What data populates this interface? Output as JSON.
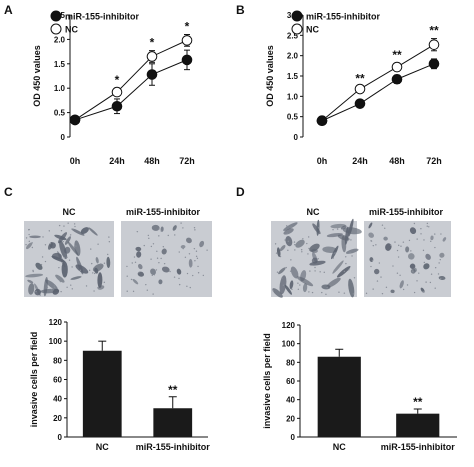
{
  "panel_labels": [
    "A",
    "B",
    "C",
    "D"
  ],
  "image_labels": {
    "C": {
      "left": "NC",
      "right": "miR-155-inhibitor"
    },
    "D": {
      "left": "NC",
      "right": "miR-155-inhibitor"
    }
  },
  "chart_data": [
    {
      "panel": "A",
      "type": "line",
      "ylabel": "OD 450 values",
      "xlabel": "",
      "categories": [
        "0h",
        "24h",
        "48h",
        "72h"
      ],
      "ylim": [
        0,
        2.5
      ],
      "yticks": [
        "0",
        "0.5",
        "1.0",
        "1.5",
        "2.0",
        "2.5"
      ],
      "legend": "top-left",
      "series": [
        {
          "name": "miR-155-inhibitor",
          "marker": "filled",
          "values": [
            0.35,
            0.63,
            1.28,
            1.58
          ],
          "errors": [
            0.03,
            0.15,
            0.22,
            0.2
          ]
        },
        {
          "name": "NC",
          "marker": "open",
          "values": [
            0.35,
            0.92,
            1.65,
            1.98
          ],
          "errors": [
            0.03,
            0.08,
            0.12,
            0.12
          ]
        }
      ],
      "annotations": [
        "",
        "*",
        "*",
        "*"
      ]
    },
    {
      "panel": "B",
      "type": "line",
      "ylabel": "OD 450 values",
      "xlabel": "",
      "categories": [
        "0h",
        "24h",
        "48h",
        "72h"
      ],
      "ylim": [
        0,
        3.0
      ],
      "yticks": [
        "0",
        "0.5",
        "1.0",
        "1.5",
        "2.0",
        "2.5",
        "3.0"
      ],
      "legend": "top-left",
      "series": [
        {
          "name": "miR-155-inhibitor",
          "marker": "filled",
          "values": [
            0.4,
            0.82,
            1.42,
            1.8
          ],
          "errors": [
            0.03,
            0.08,
            0.1,
            0.12
          ]
        },
        {
          "name": "NC",
          "marker": "open",
          "values": [
            0.4,
            1.18,
            1.72,
            2.27
          ],
          "errors": [
            0.03,
            0.06,
            0.1,
            0.15
          ]
        }
      ],
      "annotations": [
        "",
        "**",
        "**",
        "**"
      ]
    },
    {
      "panel": "C",
      "type": "bar",
      "ylabel": "invasive cells per field",
      "categories": [
        "NC",
        "miR-155-inhibitor"
      ],
      "values": [
        90,
        30
      ],
      "errors": [
        10,
        12
      ],
      "ylim": [
        0,
        120
      ],
      "yticks": [
        "0",
        "20",
        "40",
        "60",
        "80",
        "100",
        "120"
      ],
      "annotations": [
        "",
        "**"
      ]
    },
    {
      "panel": "D",
      "type": "bar",
      "ylabel": "invasive cells per field",
      "categories": [
        "NC",
        "miR-155-inhibitor"
      ],
      "values": [
        86,
        25
      ],
      "errors": [
        8,
        5
      ],
      "ylim": [
        0,
        120
      ],
      "yticks": [
        "0",
        "20",
        "40",
        "60",
        "80",
        "100",
        "120"
      ],
      "annotations": [
        "",
        "**"
      ]
    }
  ],
  "colors": {
    "bar": "#1a1a1a",
    "line": "#111111",
    "micro_bg": "#c9ccd2",
    "micro_cell": "#5c6370"
  }
}
